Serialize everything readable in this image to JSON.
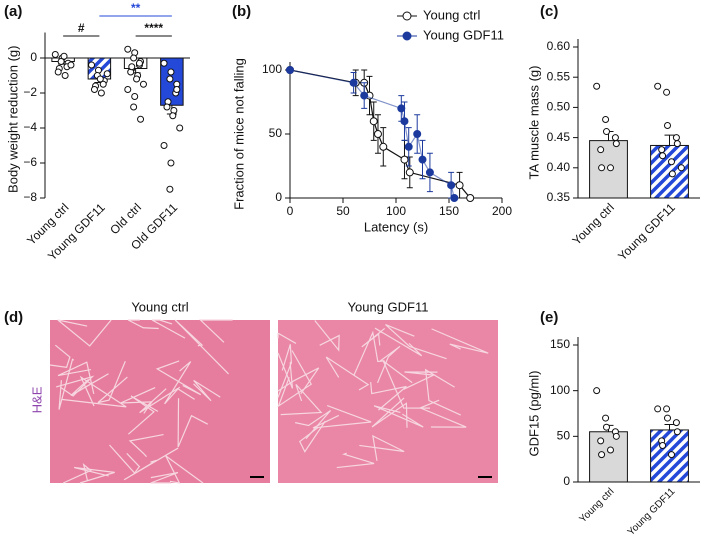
{
  "chart_data": [
    {
      "type": "bar",
      "panel": "(a)",
      "y_label": "Body weight reduction (g)",
      "categories": [
        "Young ctrl",
        "Young GDF11",
        "Old ctrl",
        "Old GDF11"
      ],
      "values": [
        -0.2,
        -1.2,
        -0.6,
        -2.7
      ],
      "errors": [
        0.15,
        0.2,
        0.25,
        0.5
      ],
      "colors": [
        "#ffffff",
        "#2448d8",
        "#ffffff",
        "#2448d8"
      ],
      "hatched": [
        false,
        true,
        false,
        false
      ],
      "points": [
        [
          0.2,
          0.0,
          -0.2,
          -0.3,
          -0.5,
          -0.6,
          -0.8,
          -1.0,
          0.1,
          -0.4
        ],
        [
          -0.4,
          -0.7,
          -1.0,
          -1.3,
          -1.5,
          -1.6,
          -1.8,
          -2.0,
          -1.2,
          -0.9
        ],
        [
          0.5,
          0.3,
          0.0,
          -0.2,
          -0.4,
          -0.6,
          -0.8,
          -1.0,
          -1.2,
          -1.5,
          -1.8,
          -2.2,
          -2.8,
          -3.5,
          -0.3,
          -0.5
        ],
        [
          -0.3,
          -0.8,
          -1.2,
          -1.5,
          -2.0,
          -2.5,
          -2.8,
          -3.0,
          -3.3,
          -4.0,
          -5.0,
          -6.0,
          -7.5,
          -1.8
        ]
      ],
      "ylim": [
        -8,
        1
      ],
      "yticks": [
        {
          "value": -8,
          "label": "−8"
        },
        {
          "value": -6,
          "label": "−6"
        },
        {
          "value": -4,
          "label": "−4"
        },
        {
          "value": -2,
          "label": "−2"
        },
        0
      ],
      "annotations": [
        {
          "text": "#",
          "color": "#111111"
        },
        {
          "text": "**",
          "color": "#2448d8"
        },
        {
          "text": "****",
          "color": "#111111"
        }
      ]
    },
    {
      "type": "line",
      "panel": "(b)",
      "x_label": "Latency (s)",
      "y_label": "Fraction of mice not falling",
      "series": [
        {
          "name": "Young ctrl",
          "color": "#111111",
          "fill": "#ffffff",
          "x": [
            0,
            62,
            70,
            75,
            79,
            83,
            88,
            108,
            113,
            160,
            170
          ],
          "values": [
            100,
            90,
            90,
            80,
            60,
            50,
            40,
            30,
            20,
            10,
            0
          ],
          "errors": [
            0,
            10,
            10,
            15,
            15,
            15,
            15,
            15,
            12,
            10,
            0
          ]
        },
        {
          "name": "Young GDF11",
          "color": "#1c3a9e",
          "fill": "#1c3a9e",
          "x": [
            0,
            60,
            70,
            105,
            108,
            112,
            120,
            125,
            132,
            152,
            155
          ],
          "values": [
            100,
            90,
            80,
            70,
            60,
            40,
            50,
            30,
            20,
            10,
            0
          ],
          "errors": [
            0,
            8,
            10,
            10,
            15,
            15,
            15,
            15,
            15,
            10,
            0
          ]
        }
      ],
      "xlim": [
        0,
        200
      ],
      "xticks": [
        0,
        50,
        100,
        150,
        200
      ],
      "ylim": [
        0,
        100
      ],
      "yticks": [
        0,
        50,
        100
      ],
      "legend": "top-right"
    },
    {
      "type": "bar",
      "panel": "(c)",
      "y_label": "TA muscle mass (g)",
      "categories": [
        "Young ctrl",
        "Young GDF11"
      ],
      "values": [
        0.445,
        0.437
      ],
      "errors": [
        0.015,
        0.017
      ],
      "colors": [
        "#d9d9d9",
        "#2448d8"
      ],
      "hatched": [
        false,
        true
      ],
      "points": [
        [
          0.535,
          0.48,
          0.46,
          0.45,
          0.44,
          0.43,
          0.4,
          0.4
        ],
        [
          0.535,
          0.525,
          0.47,
          0.45,
          0.44,
          0.43,
          0.42,
          0.41,
          0.39,
          0.4
        ]
      ],
      "ylim": [
        0.35,
        0.6
      ],
      "yticks": [
        0.35,
        {
          "value": 0.4,
          "label": "0.40"
        },
        0.45,
        {
          "value": 0.5,
          "label": "0.50"
        },
        0.55,
        {
          "value": 0.6,
          "label": "0.60"
        }
      ]
    },
    {
      "type": "bar",
      "panel": "(e)",
      "y_label": "GDF15 (pg/ml)",
      "categories": [
        "Young ctrl",
        "Young GDF11"
      ],
      "values": [
        55,
        57
      ],
      "errors": [
        7,
        6
      ],
      "colors": [
        "#d9d9d9",
        "#2448d8"
      ],
      "hatched": [
        false,
        true
      ],
      "points": [
        [
          100,
          70,
          60,
          55,
          50,
          45,
          30,
          35
        ],
        [
          80,
          80,
          70,
          65,
          55,
          45,
          40,
          30
        ]
      ],
      "ylim": [
        0,
        150
      ],
      "yticks": [
        0,
        50,
        100,
        150
      ]
    }
  ],
  "histology": {
    "panel": "(d)",
    "images": [
      {
        "label": "Young ctrl"
      },
      {
        "label": "Young GDF11"
      }
    ],
    "stain": "H&E"
  }
}
